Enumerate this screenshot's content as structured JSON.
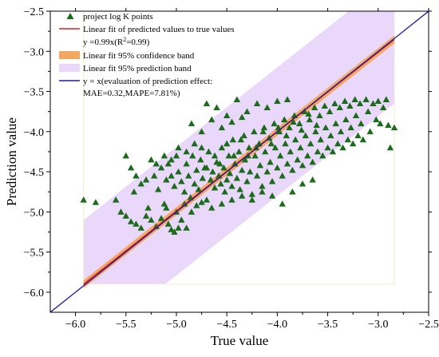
{
  "chart_data": {
    "type": "scatter",
    "xlabel": "True value",
    "ylabel": "Prediction value",
    "xlim": [
      -6.25,
      -2.5
    ],
    "ylim": [
      -6.25,
      -2.5
    ],
    "x_ticks": [
      -6.0,
      -5.5,
      -5.0,
      -4.5,
      -4.0,
      -3.5,
      -3.0,
      -2.5
    ],
    "y_ticks": [
      -2.5,
      -3.0,
      -3.5,
      -4.0,
      -4.5,
      -5.0,
      -5.5,
      -6.0
    ],
    "x_tick_labels": [
      "−6.0",
      "−5.5",
      "−5.0",
      "−4.5",
      "−4.0",
      "−3.5",
      "−3.0",
      "−2.5"
    ],
    "y_tick_labels": [
      "−2.5",
      "−3.0",
      "−3.5",
      "−4.0",
      "−4.5",
      "−5.0",
      "−5.5",
      "−6.0"
    ],
    "grid": false,
    "legend_placement": "top-left",
    "colors": {
      "points": "#1a6b1a",
      "fit_line": "#e02020",
      "confidence_band": "#f2a860",
      "prediction_band": "#ead8fb",
      "identity_line": "#1a1aa0"
    },
    "legend": {
      "points": "project log K points",
      "fit": "Linear fit of predicted values to true values",
      "fit_equation_prefix": "y =0.99x(R",
      "fit_equation_sup": "2",
      "fit_equation_suffix": "=0.99)",
      "confidence": "Linear fit 95% confidence band",
      "prediction": "Linear fit 95% prediction band",
      "identity": "y = x(evaluation of prediction effect:",
      "identity_metrics": "MAE=0.32,MAPE=7.81%)"
    },
    "fit": {
      "slope": 0.99,
      "intercept": -0.04,
      "x_range": [
        -5.92,
        -2.84
      ]
    },
    "confidence_halfwidth": 0.05,
    "prediction_halfwidth": 0.8,
    "prediction_band_clip": {
      "x": [
        -5.92,
        -2.84
      ],
      "y": [
        -5.9,
        -2.5
      ]
    },
    "series": [
      {
        "name": "project log K points",
        "points": [
          [
            -5.92,
            -4.85
          ],
          [
            -5.8,
            -4.88
          ],
          [
            -5.6,
            -4.85
          ],
          [
            -5.55,
            -5.0
          ],
          [
            -5.5,
            -5.05
          ],
          [
            -5.45,
            -5.12
          ],
          [
            -5.4,
            -5.15
          ],
          [
            -5.35,
            -5.2
          ],
          [
            -5.3,
            -5.05
          ],
          [
            -5.28,
            -4.95
          ],
          [
            -5.25,
            -5.1
          ],
          [
            -5.2,
            -5.18
          ],
          [
            -5.15,
            -5.08
          ],
          [
            -5.12,
            -4.9
          ],
          [
            -5.08,
            -5.15
          ],
          [
            -5.05,
            -5.22
          ],
          [
            -5.02,
            -5.25
          ],
          [
            -4.98,
            -5.2
          ],
          [
            -4.95,
            -5.1
          ],
          [
            -4.9,
            -5.2
          ],
          [
            -5.42,
            -4.75
          ],
          [
            -5.35,
            -4.65
          ],
          [
            -5.3,
            -4.6
          ],
          [
            -5.22,
            -4.55
          ],
          [
            -5.18,
            -4.72
          ],
          [
            -5.15,
            -4.45
          ],
          [
            -5.1,
            -4.6
          ],
          [
            -5.08,
            -4.4
          ],
          [
            -5.05,
            -4.55
          ],
          [
            -5.02,
            -4.68
          ],
          [
            -5.0,
            -4.3
          ],
          [
            -4.98,
            -4.5
          ],
          [
            -4.95,
            -4.62
          ],
          [
            -4.92,
            -4.75
          ],
          [
            -4.9,
            -4.4
          ],
          [
            -4.88,
            -4.55
          ],
          [
            -4.86,
            -4.82
          ],
          [
            -4.84,
            -4.3
          ],
          [
            -4.82,
            -4.65
          ],
          [
            -4.8,
            -4.48
          ],
          [
            -4.78,
            -4.72
          ],
          [
            -4.76,
            -4.35
          ],
          [
            -4.74,
            -4.58
          ],
          [
            -4.72,
            -4.45
          ],
          [
            -4.7,
            -4.85
          ],
          [
            -4.68,
            -4.25
          ],
          [
            -4.66,
            -4.6
          ],
          [
            -4.64,
            -4.5
          ],
          [
            -4.62,
            -4.7
          ],
          [
            -4.6,
            -4.38
          ],
          [
            -4.58,
            -4.55
          ],
          [
            -4.56,
            -4.65
          ],
          [
            -4.55,
            -4.2
          ],
          [
            -4.53,
            -4.45
          ],
          [
            -4.52,
            -4.75
          ],
          [
            -4.5,
            -4.6
          ],
          [
            -4.48,
            -4.3
          ],
          [
            -4.47,
            -4.52
          ],
          [
            -4.45,
            -4.68
          ],
          [
            -4.44,
            -4.1
          ],
          [
            -4.42,
            -4.4
          ],
          [
            -4.4,
            -4.58
          ],
          [
            -4.38,
            -4.25
          ],
          [
            -4.37,
            -4.72
          ],
          [
            -4.35,
            -4.48
          ],
          [
            -4.33,
            -4.05
          ],
          [
            -4.32,
            -4.35
          ],
          [
            -4.3,
            -4.62
          ],
          [
            -4.28,
            -4.2
          ],
          [
            -4.27,
            -4.5
          ],
          [
            -4.25,
            -4.78
          ],
          [
            -4.23,
            -4.0
          ],
          [
            -4.22,
            -4.3
          ],
          [
            -4.2,
            -4.55
          ],
          [
            -4.18,
            -4.15
          ],
          [
            -4.17,
            -4.42
          ],
          [
            -4.15,
            -4.68
          ],
          [
            -4.13,
            -3.95
          ],
          [
            -4.12,
            -4.25
          ],
          [
            -4.1,
            -4.5
          ],
          [
            -4.08,
            -4.08
          ],
          [
            -4.07,
            -4.38
          ],
          [
            -4.05,
            -4.62
          ],
          [
            -4.03,
            -3.9
          ],
          [
            -4.02,
            -4.2
          ],
          [
            -4.0,
            -4.45
          ],
          [
            -3.98,
            -4.0
          ],
          [
            -3.97,
            -4.3
          ],
          [
            -3.95,
            -4.55
          ],
          [
            -3.93,
            -3.85
          ],
          [
            -3.92,
            -4.15
          ],
          [
            -3.9,
            -4.4
          ],
          [
            -3.88,
            -3.95
          ],
          [
            -3.87,
            -4.25
          ],
          [
            -3.85,
            -4.48
          ],
          [
            -3.83,
            -3.8
          ],
          [
            -3.82,
            -4.1
          ],
          [
            -3.8,
            -4.35
          ],
          [
            -3.78,
            -3.9
          ],
          [
            -3.77,
            -4.2
          ],
          [
            -3.75,
            -4.42
          ],
          [
            -3.73,
            -3.75
          ],
          [
            -3.72,
            -4.05
          ],
          [
            -3.7,
            -4.3
          ],
          [
            -3.68,
            -3.85
          ],
          [
            -3.67,
            -4.15
          ],
          [
            -3.65,
            -4.38
          ],
          [
            -3.63,
            -3.7
          ],
          [
            -3.62,
            -4.0
          ],
          [
            -3.6,
            -4.25
          ],
          [
            -3.58,
            -3.8
          ],
          [
            -3.57,
            -4.1
          ],
          [
            -3.55,
            -4.3
          ],
          [
            -3.53,
            -3.68
          ],
          [
            -3.52,
            -3.95
          ],
          [
            -3.5,
            -4.2
          ],
          [
            -3.48,
            -3.75
          ],
          [
            -3.47,
            -4.05
          ],
          [
            -3.45,
            -4.25
          ],
          [
            -3.43,
            -3.65
          ],
          [
            -3.42,
            -3.9
          ],
          [
            -3.4,
            -4.15
          ],
          [
            -3.38,
            -3.7
          ],
          [
            -3.37,
            -4.0
          ],
          [
            -3.35,
            -4.2
          ],
          [
            -3.33,
            -3.62
          ],
          [
            -3.32,
            -3.85
          ],
          [
            -3.3,
            -4.1
          ],
          [
            -3.28,
            -3.68
          ],
          [
            -3.27,
            -3.95
          ],
          [
            -3.25,
            -4.15
          ],
          [
            -3.23,
            -3.6
          ],
          [
            -3.22,
            -3.8
          ],
          [
            -3.2,
            -4.05
          ],
          [
            -3.18,
            -3.65
          ],
          [
            -3.17,
            -3.9
          ],
          [
            -3.15,
            -4.1
          ],
          [
            -3.12,
            -3.6
          ],
          [
            -3.1,
            -3.75
          ],
          [
            -3.08,
            -4.0
          ],
          [
            -3.05,
            -3.65
          ],
          [
            -3.02,
            -3.85
          ],
          [
            -3.0,
            -3.62
          ],
          [
            -2.98,
            -3.9
          ],
          [
            -2.95,
            -3.7
          ],
          [
            -2.92,
            -3.6
          ],
          [
            -2.9,
            -3.92
          ],
          [
            -2.88,
            -4.2
          ],
          [
            -2.84,
            -3.95
          ],
          [
            -4.7,
            -3.65
          ],
          [
            -4.6,
            -3.7
          ],
          [
            -4.5,
            -3.8
          ],
          [
            -4.4,
            -3.6
          ],
          [
            -4.3,
            -3.75
          ],
          [
            -4.2,
            -3.65
          ],
          [
            -4.1,
            -3.7
          ],
          [
            -4.0,
            -3.62
          ],
          [
            -3.9,
            -3.6
          ],
          [
            -4.65,
            -4.95
          ],
          [
            -4.55,
            -4.9
          ],
          [
            -4.45,
            -4.85
          ],
          [
            -4.35,
            -4.8
          ],
          [
            -4.25,
            -4.85
          ],
          [
            -4.15,
            -4.75
          ],
          [
            -4.05,
            -4.8
          ],
          [
            -3.95,
            -4.9
          ],
          [
            -3.85,
            -4.75
          ],
          [
            -3.75,
            -4.65
          ],
          [
            -3.65,
            -4.6
          ],
          [
            -4.85,
            -3.9
          ],
          [
            -4.75,
            -4.0
          ],
          [
            -4.65,
            -3.85
          ],
          [
            -4.55,
            -3.95
          ],
          [
            -4.45,
            -3.88
          ],
          [
            -4.35,
            -3.82
          ],
          [
            -5.5,
            -4.3
          ],
          [
            -5.45,
            -4.45
          ],
          [
            -5.4,
            -4.55
          ],
          [
            -5.1,
            -4.95
          ],
          [
            -5.0,
            -5.0
          ],
          [
            -4.92,
            -4.9
          ],
          [
            -4.85,
            -5.0
          ],
          [
            -4.8,
            -4.92
          ],
          [
            -4.75,
            -4.88
          ],
          [
            -4.7,
            -4.45
          ],
          [
            -4.62,
            -4.3
          ],
          [
            -4.57,
            -4.4
          ],
          [
            -4.5,
            -4.15
          ],
          [
            -4.43,
            -4.3
          ],
          [
            -4.36,
            -4.1
          ],
          [
            -4.29,
            -4.3
          ],
          [
            -4.21,
            -4.2
          ],
          [
            -4.14,
            -4.0
          ],
          [
            -4.06,
            -4.15
          ],
          [
            -3.99,
            -3.95
          ],
          [
            -3.91,
            -4.05
          ],
          [
            -3.84,
            -3.88
          ],
          [
            -3.76,
            -3.98
          ],
          [
            -3.69,
            -3.78
          ],
          [
            -3.61,
            -3.92
          ],
          [
            -5.25,
            -4.35
          ],
          [
            -5.2,
            -4.4
          ],
          [
            -5.12,
            -4.3
          ],
          [
            -5.05,
            -4.35
          ],
          [
            -4.98,
            -4.2
          ],
          [
            -4.9,
            -4.25
          ],
          [
            -4.82,
            -4.15
          ],
          [
            -4.75,
            -4.2
          ]
        ]
      }
    ]
  }
}
